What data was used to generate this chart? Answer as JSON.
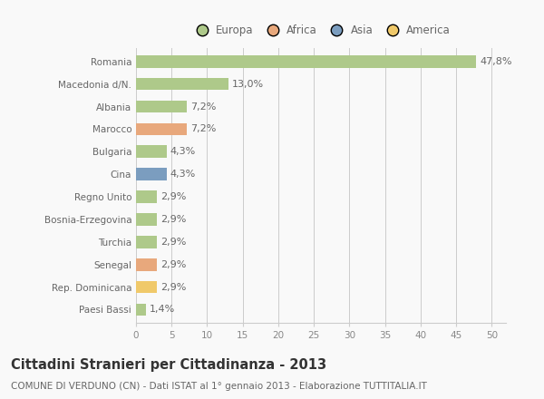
{
  "categories": [
    "Romania",
    "Macedonia d/N.",
    "Albania",
    "Marocco",
    "Bulgaria",
    "Cina",
    "Regno Unito",
    "Bosnia-Erzegovina",
    "Turchia",
    "Senegal",
    "Rep. Dominicana",
    "Paesi Bassi"
  ],
  "values": [
    47.8,
    13.0,
    7.2,
    7.2,
    4.3,
    4.3,
    2.9,
    2.9,
    2.9,
    2.9,
    2.9,
    1.4
  ],
  "labels": [
    "47,8%",
    "13,0%",
    "7,2%",
    "7,2%",
    "4,3%",
    "4,3%",
    "2,9%",
    "2,9%",
    "2,9%",
    "2,9%",
    "2,9%",
    "1,4%"
  ],
  "colors": [
    "#aec98a",
    "#aec98a",
    "#aec98a",
    "#e8a87c",
    "#aec98a",
    "#7b9dbf",
    "#aec98a",
    "#aec98a",
    "#aec98a",
    "#e8a87c",
    "#f0c96a",
    "#aec98a"
  ],
  "legend": [
    {
      "label": "Europa",
      "color": "#aec98a"
    },
    {
      "label": "Africa",
      "color": "#e8a87c"
    },
    {
      "label": "Asia",
      "color": "#7b9dbf"
    },
    {
      "label": "America",
      "color": "#f0c96a"
    }
  ],
  "xlim": [
    0,
    52
  ],
  "xticks": [
    0,
    5,
    10,
    15,
    20,
    25,
    30,
    35,
    40,
    45,
    50
  ],
  "title": "Cittadini Stranieri per Cittadinanza - 2013",
  "subtitle": "COMUNE DI VERDUNO (CN) - Dati ISTAT al 1° gennaio 2013 - Elaborazione TUTTITALIA.IT",
  "background_color": "#f9f9f9",
  "grid_color": "#cccccc",
  "bar_height": 0.55,
  "title_fontsize": 10.5,
  "subtitle_fontsize": 7.5,
  "label_fontsize": 8,
  "tick_fontsize": 7.5,
  "legend_fontsize": 8.5
}
